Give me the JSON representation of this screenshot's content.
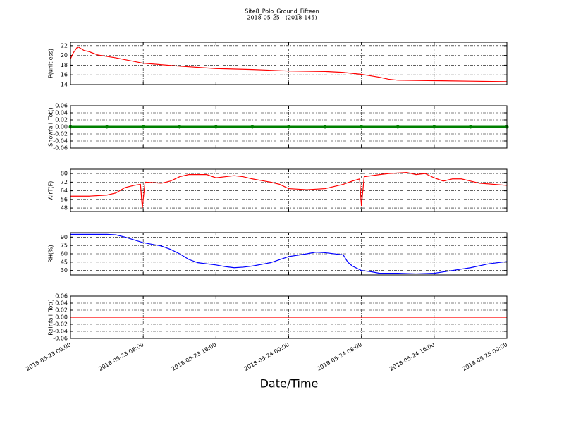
{
  "chart_data": [
    {
      "type": "line",
      "title": "Site8_Polo_Ground_Fifteen",
      "subtitle": "2018-05-25 - (2018-145)",
      "ylabel": "P(unitless)",
      "xlim": [
        "2018-05-23 00:00",
        "2018-05-25 00:00"
      ],
      "xticks": [
        "2018-05-23 00:00",
        "2018-05-23 08:00",
        "2018-05-23 16:00",
        "2018-05-24 00:00",
        "2018-05-24 08:00",
        "2018-05-24 16:00",
        "2018-05-25 00:00"
      ],
      "ylim": [
        14,
        22.7
      ],
      "yticks": [
        14,
        16,
        18,
        20,
        22
      ],
      "grid": true,
      "series": [
        {
          "color": "#ff0000",
          "x": [
            "2018-05-23 00:00",
            "2018-05-23 00:18",
            "2018-05-23 00:48",
            "2018-05-23 01:30",
            "2018-05-23 02:00",
            "2018-05-23 03:00",
            "2018-05-23 05:00",
            "2018-05-23 08:00",
            "2018-05-23 12:00",
            "2018-05-23 16:00",
            "2018-05-23 20:00",
            "2018-05-24 00:00",
            "2018-05-24 04:00",
            "2018-05-24 06:00",
            "2018-05-24 08:00",
            "2018-05-24 09:00",
            "2018-05-24 10:00",
            "2018-05-24 11:00",
            "2018-05-24 12:00",
            "2018-05-24 16:00",
            "2018-05-24 20:00",
            "2018-05-25 00:00"
          ],
          "values": [
            19.3,
            20.5,
            21.8,
            21.0,
            20.8,
            20.1,
            19.5,
            18.4,
            17.8,
            17.3,
            17.1,
            16.8,
            16.7,
            16.5,
            16.1,
            15.8,
            15.5,
            15.1,
            14.9,
            14.8,
            14.7,
            14.6
          ]
        }
      ]
    },
    {
      "type": "line",
      "ylabel": "Snowfall_Tot()",
      "xlim": [
        "2018-05-23 00:00",
        "2018-05-25 00:00"
      ],
      "xticks": [
        "2018-05-23 00:00",
        "2018-05-23 08:00",
        "2018-05-23 16:00",
        "2018-05-24 00:00",
        "2018-05-24 08:00",
        "2018-05-24 16:00",
        "2018-05-25 00:00"
      ],
      "ylim": [
        -0.06,
        0.06
      ],
      "yticks": [
        -0.06,
        -0.04,
        -0.02,
        {
          "value": 0,
          "label": "0.00"
        },
        0.02,
        0.04,
        0.06
      ],
      "grid": true,
      "series": [
        {
          "color": "#008000",
          "markers": true,
          "x": [
            "2018-05-23 00:00",
            "2018-05-23 04:00",
            "2018-05-23 08:00",
            "2018-05-23 12:00",
            "2018-05-23 16:00",
            "2018-05-23 20:00",
            "2018-05-24 00:00",
            "2018-05-24 04:00",
            "2018-05-24 08:00",
            "2018-05-24 12:00",
            "2018-05-24 16:00",
            "2018-05-24 20:00",
            "2018-05-25 00:00"
          ],
          "values": [
            0,
            0,
            0,
            0,
            0,
            0,
            0,
            0,
            0,
            0,
            0,
            0,
            0
          ]
        }
      ]
    },
    {
      "type": "line",
      "ylabel": "AirT(F)",
      "xlim": [
        "2018-05-23 00:00",
        "2018-05-25 00:00"
      ],
      "xticks": [
        "2018-05-23 00:00",
        "2018-05-23 08:00",
        "2018-05-23 16:00",
        "2018-05-24 00:00",
        "2018-05-24 08:00",
        "2018-05-24 16:00",
        "2018-05-25 00:00"
      ],
      "ylim": [
        44.8,
        84
      ],
      "yticks": [
        48,
        56,
        64,
        72,
        80
      ],
      "grid": true,
      "series": [
        {
          "color": "#ff0000",
          "x": [
            "2018-05-23 00:00",
            "2018-05-23 02:00",
            "2018-05-23 04:00",
            "2018-05-23 05:00",
            "2018-05-23 06:00",
            "2018-05-23 07:00",
            "2018-05-23 07:42",
            "2018-05-23 07:54",
            "2018-05-23 08:12",
            "2018-05-23 10:00",
            "2018-05-23 11:00",
            "2018-05-23 12:00",
            "2018-05-23 13:00",
            "2018-05-23 15:00",
            "2018-05-23 16:00",
            "2018-05-23 17:00",
            "2018-05-23 18:00",
            "2018-05-23 19:00",
            "2018-05-23 20:00",
            "2018-05-23 22:00",
            "2018-05-23 23:00",
            "2018-05-24 00:00",
            "2018-05-24 02:00",
            "2018-05-24 04:00",
            "2018-05-24 06:00",
            "2018-05-24 07:00",
            "2018-05-24 07:48",
            "2018-05-24 08:00",
            "2018-05-24 08:18",
            "2018-05-24 10:00",
            "2018-05-24 11:00",
            "2018-05-24 13:00",
            "2018-05-24 14:00",
            "2018-05-24 15:00",
            "2018-05-24 16:00",
            "2018-05-24 17:00",
            "2018-05-24 18:00",
            "2018-05-24 19:00",
            "2018-05-24 21:00",
            "2018-05-25 00:00"
          ],
          "values": [
            59,
            59,
            60,
            62,
            67,
            69,
            70,
            48,
            72,
            71,
            73,
            77,
            79,
            79,
            76,
            77,
            78,
            77,
            75,
            72,
            70,
            66,
            65,
            66,
            70,
            73,
            75,
            50,
            77,
            79,
            80,
            81,
            79,
            80,
            76,
            73,
            75,
            75,
            71,
            69
          ]
        }
      ]
    },
    {
      "type": "line",
      "ylabel": "RH(%)",
      "xlim": [
        "2018-05-23 00:00",
        "2018-05-25 00:00"
      ],
      "xticks": [
        "2018-05-23 00:00",
        "2018-05-23 08:00",
        "2018-05-23 16:00",
        "2018-05-24 00:00",
        "2018-05-24 08:00",
        "2018-05-24 16:00",
        "2018-05-25 00:00"
      ],
      "ylim": [
        22,
        98
      ],
      "yticks": [
        30,
        45,
        60,
        75,
        90
      ],
      "grid": true,
      "series": [
        {
          "color": "#0000ff",
          "x": [
            "2018-05-23 00:00",
            "2018-05-23 04:00",
            "2018-05-23 05:00",
            "2018-05-23 06:00",
            "2018-05-23 07:00",
            "2018-05-23 08:00",
            "2018-05-23 09:00",
            "2018-05-23 10:00",
            "2018-05-23 11:00",
            "2018-05-23 12:00",
            "2018-05-23 13:00",
            "2018-05-23 14:00",
            "2018-05-23 16:00",
            "2018-05-23 17:00",
            "2018-05-23 18:00",
            "2018-05-23 19:00",
            "2018-05-23 20:00",
            "2018-05-23 22:00",
            "2018-05-24 00:00",
            "2018-05-24 02:00",
            "2018-05-24 03:00",
            "2018-05-24 04:00",
            "2018-05-24 06:00",
            "2018-05-24 06:30",
            "2018-05-24 07:00",
            "2018-05-24 08:00",
            "2018-05-24 09:00",
            "2018-05-24 10:00",
            "2018-05-24 12:00",
            "2018-05-24 14:00",
            "2018-05-24 16:00",
            "2018-05-24 18:00",
            "2018-05-24 20:00",
            "2018-05-24 22:00",
            "2018-05-25 00:00"
          ],
          "values": [
            95,
            95,
            94,
            90,
            85,
            80,
            77,
            74,
            68,
            60,
            50,
            44,
            40,
            37,
            35,
            36,
            38,
            44,
            55,
            60,
            63,
            62,
            58,
            45,
            38,
            30,
            28,
            25,
            25,
            24,
            25,
            30,
            35,
            42,
            46
          ]
        }
      ]
    },
    {
      "type": "line",
      "ylabel": "Rainfall_Tot()",
      "xlabel": "Date/Time",
      "xlim": [
        "2018-05-23 00:00",
        "2018-05-25 00:00"
      ],
      "xticks": [
        "2018-05-23 00:00",
        "2018-05-23 08:00",
        "2018-05-23 16:00",
        "2018-05-24 00:00",
        "2018-05-24 08:00",
        "2018-05-24 16:00",
        "2018-05-25 00:00"
      ],
      "ylim": [
        -0.06,
        0.06
      ],
      "yticks": [
        -0.06,
        -0.04,
        -0.02,
        {
          "value": 0,
          "label": "0.00"
        },
        0.02,
        0.04,
        0.06
      ],
      "grid": true,
      "series": [
        {
          "color": "#ff0000",
          "x": [
            "2018-05-23 00:00",
            "2018-05-23 04:00",
            "2018-05-23 08:00",
            "2018-05-23 12:00",
            "2018-05-23 16:00",
            "2018-05-23 20:00",
            "2018-05-24 00:00",
            "2018-05-24 04:00",
            "2018-05-24 08:00",
            "2018-05-24 12:00",
            "2018-05-24 16:00",
            "2018-05-24 20:00",
            "2018-05-25 00:00"
          ],
          "values": [
            0,
            0,
            0,
            0,
            0,
            0,
            0,
            0,
            0,
            0,
            0,
            0,
            0
          ]
        }
      ]
    }
  ]
}
